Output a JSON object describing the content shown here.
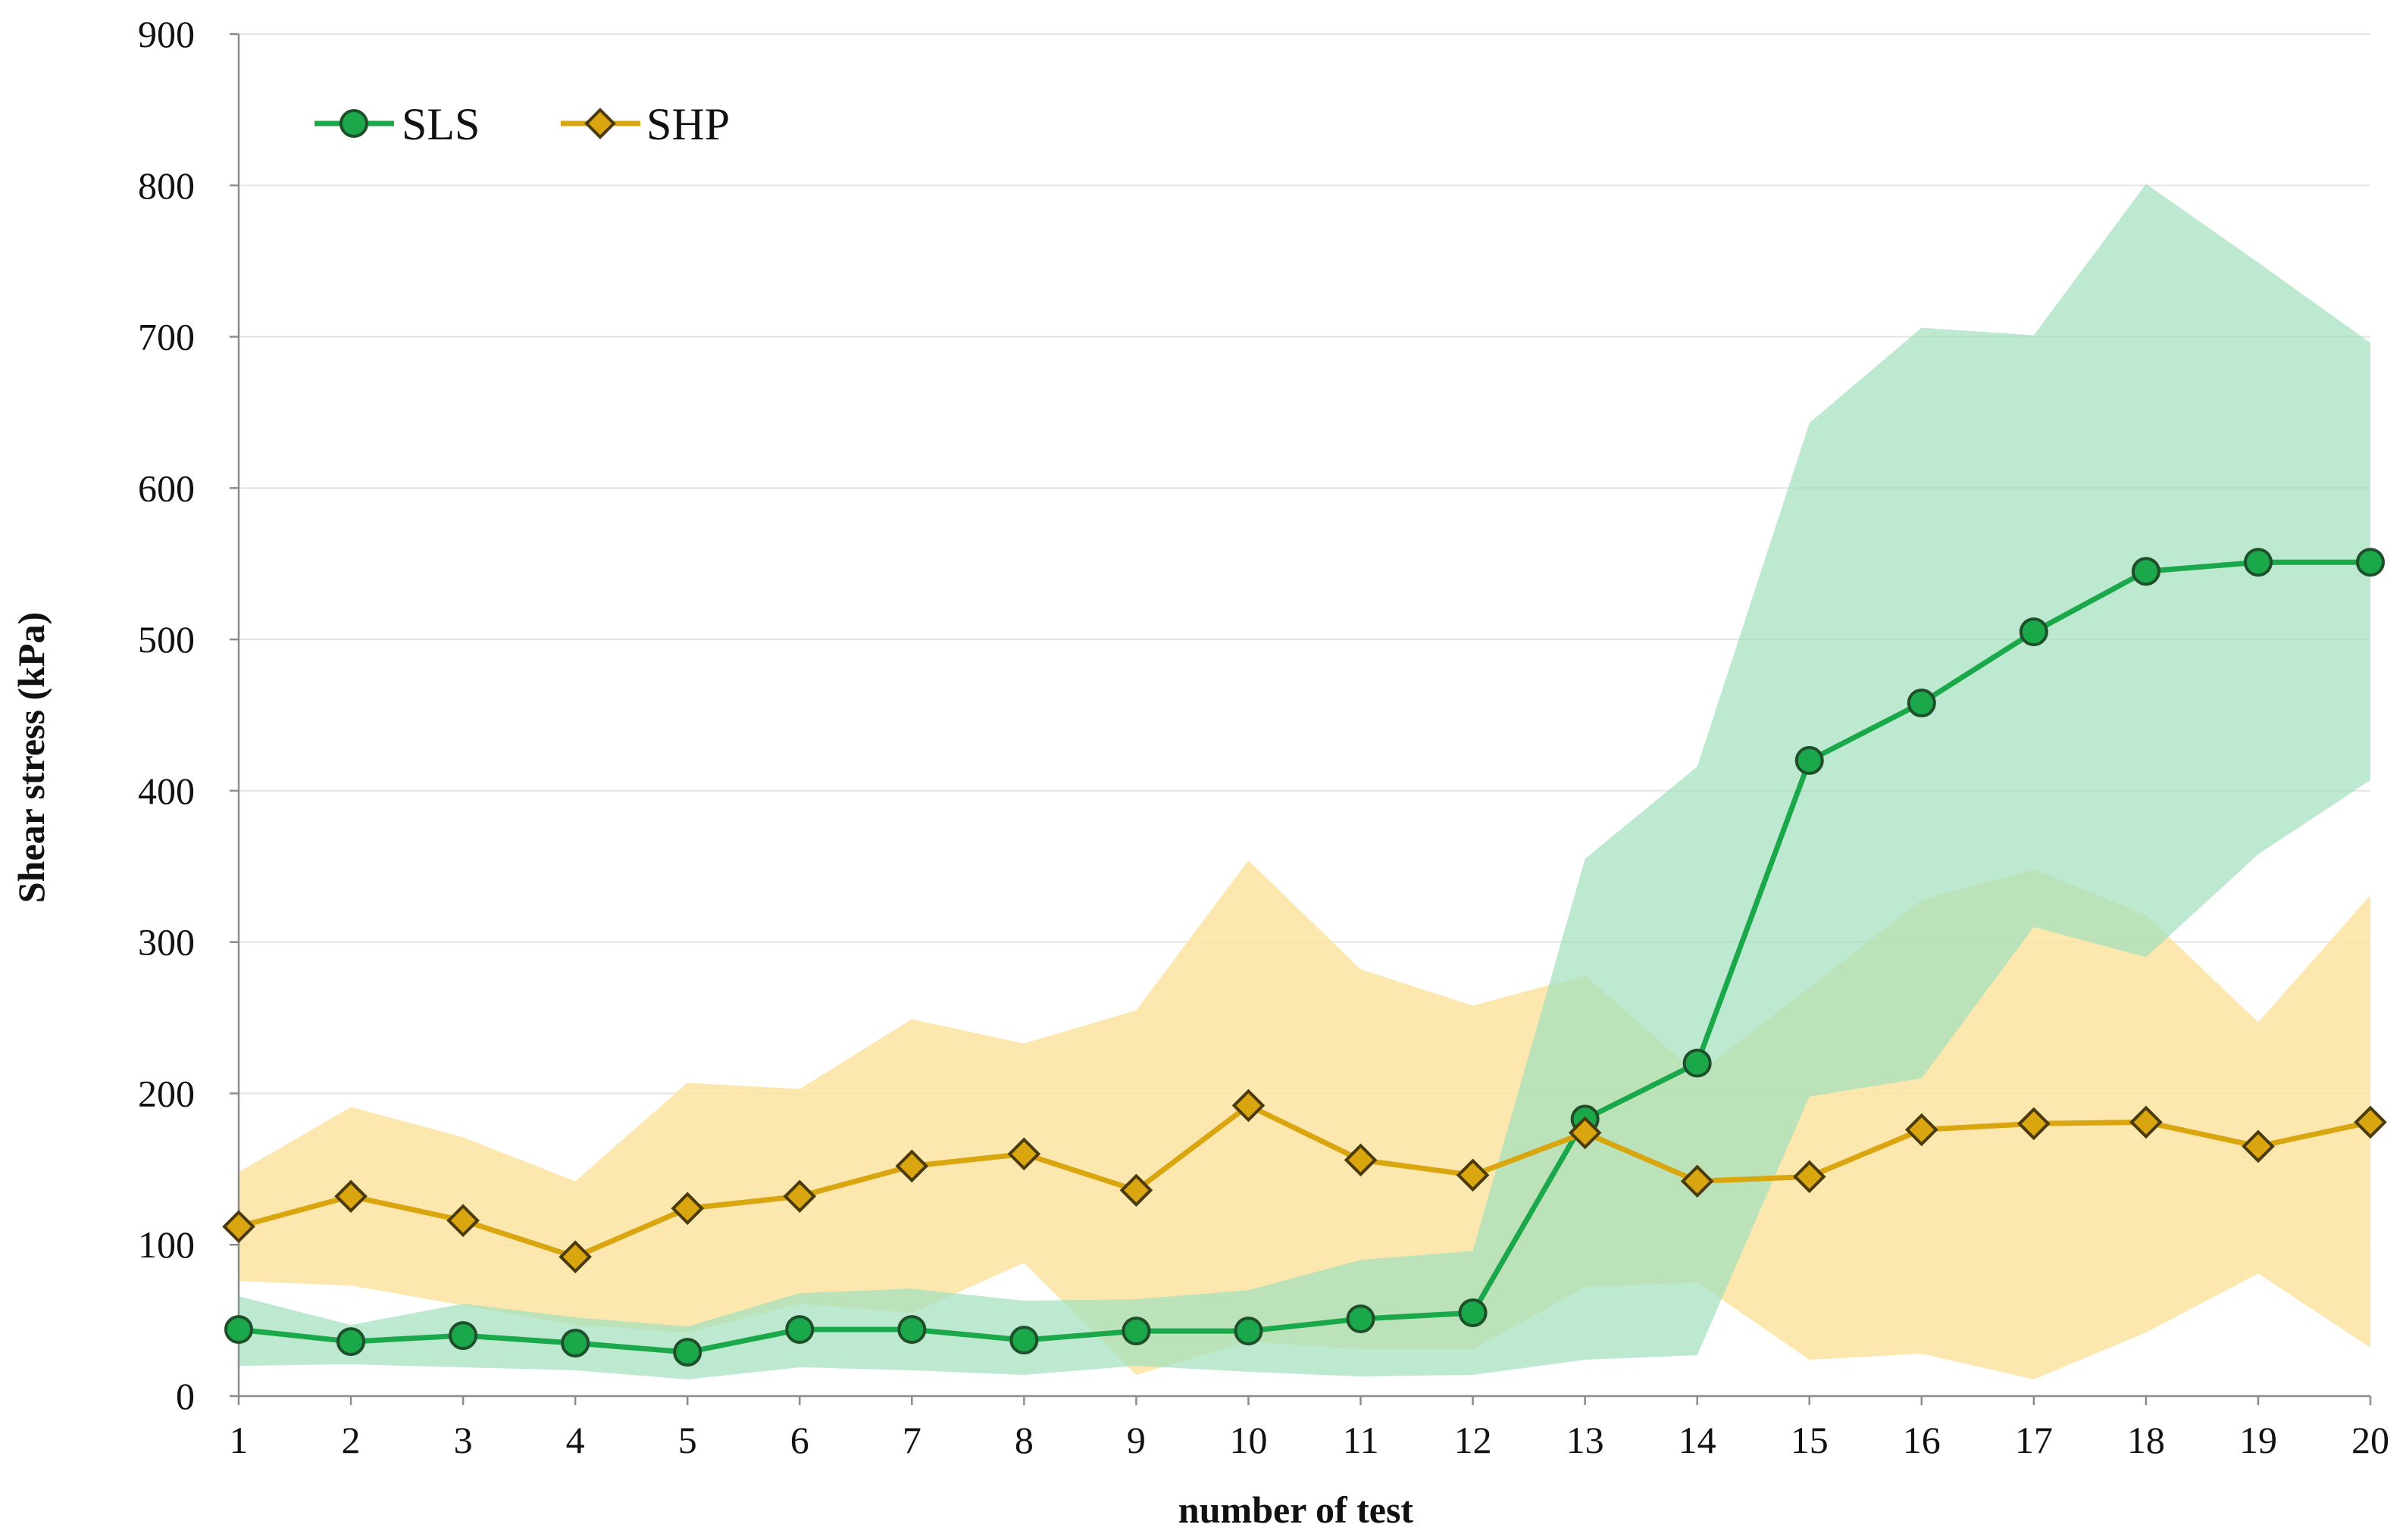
{
  "chart_data": {
    "type": "line",
    "title": "",
    "xlabel": "number of test",
    "ylabel": "Shear stress (kPa)",
    "categories": [
      "1",
      "2",
      "3",
      "4",
      "5",
      "6",
      "7",
      "8",
      "9",
      "10",
      "11",
      "12",
      "13",
      "14",
      "15",
      "16",
      "17",
      "18",
      "19",
      "20"
    ],
    "ylim": [
      0,
      900
    ],
    "yticks": [
      0,
      100,
      200,
      300,
      400,
      500,
      600,
      700,
      800,
      900
    ],
    "grid": "horizontal",
    "legend_position": "top-left",
    "series": [
      {
        "name": "SLS",
        "color": "#1aa84a",
        "band_color": "#9fe0bc",
        "marker": "circle",
        "values": [
          44,
          36,
          40,
          35,
          29,
          44,
          44,
          37,
          43,
          43,
          51,
          55,
          183,
          220,
          420,
          458,
          505,
          545,
          551,
          551
        ],
        "band_upper": [
          66,
          47,
          61,
          52,
          46,
          68,
          71,
          63,
          64,
          70,
          90,
          96,
          355,
          416,
          643,
          706,
          701,
          801,
          749,
          696
        ],
        "band_lower": [
          20,
          21,
          19,
          17,
          11,
          19,
          17,
          14,
          20,
          16,
          13,
          14,
          24,
          27,
          198,
          210,
          310,
          290,
          358,
          407
        ]
      },
      {
        "name": "SHP",
        "color": "#d9a60f",
        "band_color": "#fbe3a0",
        "marker": "diamond",
        "values": [
          112,
          132,
          116,
          92,
          124,
          132,
          152,
          160,
          136,
          192,
          156,
          146,
          174,
          142,
          145,
          176,
          180,
          181,
          165,
          181
        ],
        "band_upper": [
          148,
          191,
          171,
          142,
          207,
          203,
          249,
          233,
          255,
          354,
          282,
          258,
          278,
          213,
          270,
          328,
          348,
          318,
          247,
          331
        ],
        "band_lower": [
          76,
          73,
          60,
          47,
          42,
          61,
          55,
          88,
          14,
          36,
          31,
          31,
          72,
          75,
          24,
          28,
          11,
          42,
          81,
          32
        ]
      }
    ]
  }
}
